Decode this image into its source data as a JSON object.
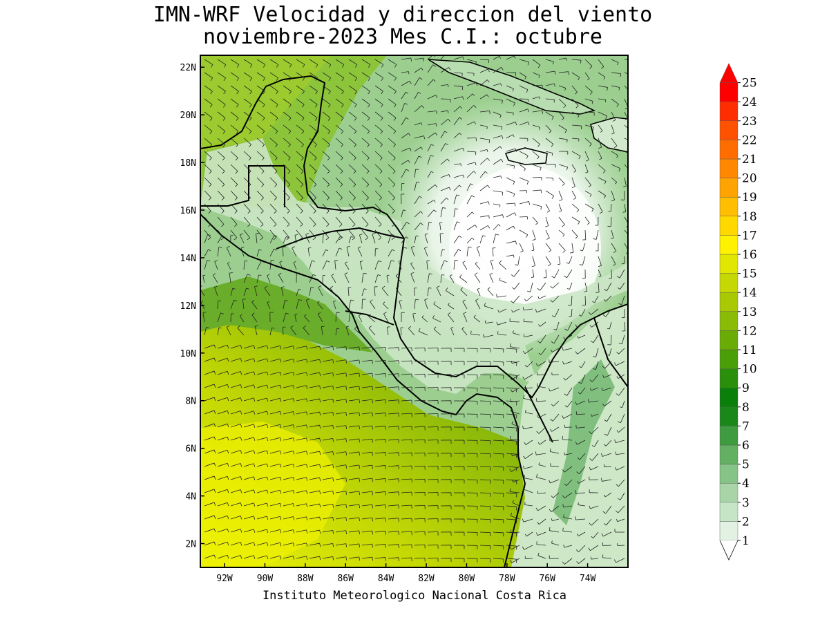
{
  "title": {
    "line1": "IMN-WRF Velocidad y direccion del viento",
    "line2": "noviembre-2023 Mes C.I.: octubre"
  },
  "credit": "Instituto Meteorologico Nacional Costa Rica",
  "map": {
    "lon_range": [
      -93.2,
      -72.0
    ],
    "lat_range": [
      1.0,
      22.5
    ],
    "lon_ticks": [
      {
        "value": -92,
        "label": "92W"
      },
      {
        "value": -90,
        "label": "90W"
      },
      {
        "value": -88,
        "label": "88W"
      },
      {
        "value": -86,
        "label": "86W"
      },
      {
        "value": -84,
        "label": "84W"
      },
      {
        "value": -82,
        "label": "82W"
      },
      {
        "value": -80,
        "label": "80W"
      },
      {
        "value": -78,
        "label": "78W"
      },
      {
        "value": -76,
        "label": "76W"
      },
      {
        "value": -74,
        "label": "74W"
      }
    ],
    "lat_ticks": [
      {
        "value": 22,
        "label": "22N"
      },
      {
        "value": 20,
        "label": "20N"
      },
      {
        "value": 18,
        "label": "18N"
      },
      {
        "value": 16,
        "label": "16N"
      },
      {
        "value": 14,
        "label": "14N"
      },
      {
        "value": 12,
        "label": "12N"
      },
      {
        "value": 10,
        "label": "10N"
      },
      {
        "value": 8,
        "label": "8N"
      },
      {
        "value": 6,
        "label": "6N"
      },
      {
        "value": 4,
        "label": "4N"
      },
      {
        "value": 2,
        "label": "2N"
      }
    ]
  },
  "colorbar": {
    "levels": [
      {
        "label": "1",
        "color": "#ffffff"
      },
      {
        "label": "2",
        "color": "#e2f1e2"
      },
      {
        "label": "3",
        "color": "#c6e4c6"
      },
      {
        "label": "4",
        "color": "#a8d5a8"
      },
      {
        "label": "5",
        "color": "#86c386"
      },
      {
        "label": "6",
        "color": "#63b063"
      },
      {
        "label": "7",
        "color": "#3f9b3f"
      },
      {
        "label": "8",
        "color": "#1b871b"
      },
      {
        "label": "9",
        "color": "#0a7f0a"
      },
      {
        "label": "10",
        "color": "#2a8f0a"
      },
      {
        "label": "11",
        "color": "#4a9e08"
      },
      {
        "label": "12",
        "color": "#6aac06"
      },
      {
        "label": "13",
        "color": "#8abb05"
      },
      {
        "label": "14",
        "color": "#a8c904"
      },
      {
        "label": "15",
        "color": "#c6d803"
      },
      {
        "label": "16",
        "color": "#e2e702"
      },
      {
        "label": "17",
        "color": "#fff200"
      },
      {
        "label": "18",
        "color": "#ffd800"
      },
      {
        "label": "19",
        "color": "#ffbe00"
      },
      {
        "label": "20",
        "color": "#ffa300"
      },
      {
        "label": "21",
        "color": "#ff8800"
      },
      {
        "label": "22",
        "color": "#ff6d00"
      },
      {
        "label": "23",
        "color": "#ff5200"
      },
      {
        "label": "24",
        "color": "#ff2e00"
      },
      {
        "label": "25",
        "color": "#ff0000"
      }
    ]
  }
}
